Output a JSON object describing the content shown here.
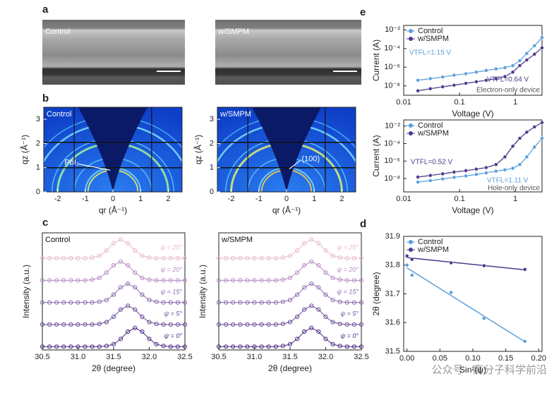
{
  "panel_labels": [
    "a",
    "b",
    "c",
    "d",
    "e"
  ],
  "sem_images": [
    {
      "label": "Control"
    },
    {
      "label": "w/SMPM"
    }
  ],
  "watermark": "公众号 · 高分子科学前沿",
  "chart_data": [
    {
      "type": "giwaxs",
      "title": "Control",
      "xlabel": "qr (Å⁻¹)",
      "ylabel": "qz (Å⁻¹)",
      "xlim": [
        -2.5,
        2.5
      ],
      "xticks": [
        -2,
        -1,
        0,
        1,
        2
      ],
      "ylim": [
        0,
        3.5
      ],
      "yticks": [
        0,
        1,
        2,
        3
      ],
      "annotation": "PbI₂"
    },
    {
      "type": "giwaxs",
      "title": "w/SMPM",
      "xlabel": "qr (Å⁻¹)",
      "ylabel": "qz (Å⁻¹)",
      "xlim": [
        -2.5,
        2.5
      ],
      "xticks": [
        -2,
        -1,
        0,
        1,
        2
      ],
      "ylim": [
        0,
        3.5
      ],
      "yticks": [
        0,
        1,
        2,
        3
      ],
      "annotation": "(100)"
    },
    {
      "type": "xrd",
      "title": "Control",
      "xlabel": "2θ (degree)",
      "ylabel": "Intensity (a.u.)",
      "xlim": [
        30.5,
        32.5
      ],
      "xticks": [
        30.5,
        {
          "value": 31,
          "label": "31.0"
        },
        31.5,
        {
          "value": 32,
          "label": "32.0"
        },
        32.5
      ],
      "x": [
        30.5,
        30.6,
        30.7,
        30.8,
        30.9,
        31,
        31.1,
        31.2,
        31.3,
        31.4,
        31.5,
        31.6,
        31.7,
        31.8,
        31.9,
        32,
        32.1,
        32.2,
        32.3,
        32.4,
        32.5
      ],
      "series": [
        {
          "name": "ψ = 0°",
          "color": "#4b2a7f",
          "values": [
            0.15,
            0.15,
            0.15,
            0.15,
            0.15,
            0.15,
            0.15,
            0.15,
            0.15,
            0.18,
            0.26,
            0.5,
            0.83,
            1,
            0.83,
            0.5,
            0.26,
            0.18,
            0.15,
            0.15,
            0.15
          ]
        },
        {
          "name": "ψ = 5°",
          "color": "#6a4a9a",
          "values": [
            0.15,
            0.15,
            0.15,
            0.15,
            0.15,
            0.15,
            0.15,
            0.15,
            0.18,
            0.26,
            0.5,
            0.83,
            1,
            0.83,
            0.5,
            0.26,
            0.18,
            0.15,
            0.15,
            0.15,
            0.15
          ]
        },
        {
          "name": "ψ = 15°",
          "color": "#8a6aaf",
          "values": [
            0.15,
            0.15,
            0.15,
            0.15,
            0.15,
            0.15,
            0.15,
            0.15,
            0.18,
            0.26,
            0.5,
            0.83,
            1,
            0.83,
            0.5,
            0.26,
            0.18,
            0.15,
            0.15,
            0.15,
            0.15
          ]
        },
        {
          "name": "ψ = 20°",
          "color": "#b48dc0",
          "values": [
            0.15,
            0.15,
            0.15,
            0.15,
            0.15,
            0.15,
            0.15,
            0.18,
            0.26,
            0.5,
            0.83,
            1,
            0.83,
            0.5,
            0.26,
            0.18,
            0.15,
            0.15,
            0.15,
            0.15,
            0.15
          ]
        },
        {
          "name": "ψ = 25°",
          "color": "#e8b8d0",
          "values": [
            0.15,
            0.15,
            0.15,
            0.15,
            0.15,
            0.15,
            0.15,
            0.18,
            0.26,
            0.5,
            0.83,
            1,
            0.83,
            0.5,
            0.26,
            0.18,
            0.15,
            0.15,
            0.15,
            0.15,
            0.15
          ]
        }
      ]
    },
    {
      "type": "xrd",
      "title": "w/SMPM",
      "xlabel": "2θ (degree)",
      "ylabel": "Intensity (a.u.)",
      "xlim": [
        30.5,
        32.5
      ],
      "xticks": [
        30.5,
        {
          "value": 31,
          "label": "31.0"
        },
        31.5,
        {
          "value": 32,
          "label": "32.0"
        },
        32.5
      ],
      "x": [
        30.5,
        30.6,
        30.7,
        30.8,
        30.9,
        31,
        31.1,
        31.2,
        31.3,
        31.4,
        31.5,
        31.6,
        31.7,
        31.8,
        31.9,
        32,
        32.1,
        32.2,
        32.3,
        32.4,
        32.5
      ],
      "series": [
        {
          "name": "ψ = 0°",
          "color": "#4b2a7f",
          "values": [
            0.15,
            0.15,
            0.15,
            0.15,
            0.15,
            0.15,
            0.15,
            0.15,
            0.15,
            0.18,
            0.26,
            0.5,
            0.83,
            1,
            0.83,
            0.5,
            0.26,
            0.18,
            0.15,
            0.15,
            0.15
          ]
        },
        {
          "name": "ψ = 5°",
          "color": "#6a4a9a",
          "values": [
            0.15,
            0.15,
            0.15,
            0.15,
            0.15,
            0.15,
            0.15,
            0.15,
            0.15,
            0.18,
            0.26,
            0.5,
            0.83,
            1,
            0.83,
            0.5,
            0.26,
            0.18,
            0.15,
            0.15,
            0.15
          ]
        },
        {
          "name": "ψ = 15°",
          "color": "#8a6aaf",
          "values": [
            0.15,
            0.15,
            0.15,
            0.15,
            0.15,
            0.15,
            0.15,
            0.15,
            0.15,
            0.18,
            0.26,
            0.5,
            0.83,
            1,
            0.83,
            0.5,
            0.26,
            0.18,
            0.15,
            0.15,
            0.15
          ]
        },
        {
          "name": "ψ = 20°",
          "color": "#b48dc0",
          "values": [
            0.15,
            0.15,
            0.15,
            0.15,
            0.15,
            0.15,
            0.15,
            0.15,
            0.15,
            0.18,
            0.26,
            0.5,
            0.83,
            1,
            0.83,
            0.5,
            0.26,
            0.18,
            0.15,
            0.15,
            0.15
          ]
        },
        {
          "name": "ψ = 25°",
          "color": "#e8b8d0",
          "values": [
            0.15,
            0.15,
            0.15,
            0.15,
            0.15,
            0.15,
            0.15,
            0.15,
            0.15,
            0.18,
            0.26,
            0.5,
            0.83,
            1,
            0.83,
            0.5,
            0.26,
            0.18,
            0.15,
            0.15,
            0.15
          ]
        }
      ]
    },
    {
      "type": "scatter-fit",
      "xlabel": "Sin²(ψ)",
      "ylabel": "2θ (degree)",
      "legend": "upper left",
      "xlim": [
        -0.005,
        0.205
      ],
      "xticks": [
        {
          "value": 0,
          "label": "0.00"
        },
        {
          "value": 0.05,
          "label": "0.05"
        },
        {
          "value": 0.1,
          "label": "0.10"
        },
        {
          "value": 0.15,
          "label": "0.15"
        },
        {
          "value": 0.2,
          "label": "0.20"
        }
      ],
      "ylim": [
        31.5,
        31.9
      ],
      "yticks": [
        31.5,
        31.6,
        31.7,
        31.8,
        31.9
      ],
      "x": [
        0,
        0.0076,
        0.067,
        0.117,
        0.179
      ],
      "series": [
        {
          "name": "Control",
          "color": "#5aa0dc",
          "values": [
            31.8,
            31.765,
            31.705,
            31.615,
            31.535
          ]
        },
        {
          "name": "w/SMPM",
          "color": "#4e3a8a",
          "values": [
            31.832,
            31.82,
            31.808,
            31.798,
            31.785
          ]
        }
      ]
    },
    {
      "type": "line",
      "xlabel": "Voltage (V)",
      "ylabel": "Current (A)",
      "legend": "upper left",
      "log_x": true,
      "log_y": true,
      "xlim": [
        0.01,
        3
      ],
      "xticks": [
        0.01,
        0.1,
        1
      ],
      "ylim": [
        1e-09,
        0.03
      ],
      "yticks": [
        {
          "value": 0.01,
          "label": "10⁻²"
        },
        {
          "value": 0.0001,
          "label": "10⁻⁴"
        },
        {
          "value": 1e-06,
          "label": "10⁻⁶"
        },
        {
          "value": 1e-08,
          "label": "10⁻⁸"
        }
      ],
      "x": [
        0.018,
        0.03,
        0.05,
        0.08,
        0.13,
        0.2,
        0.3,
        0.45,
        0.65,
        0.9,
        1.2,
        1.6,
        2.2,
        3
      ],
      "series": [
        {
          "name": "Control",
          "color": "#5aa0dc",
          "values": [
            4e-08,
            6e-08,
            9e-08,
            1.4e-07,
            2e-07,
            3e-07,
            4.5e-07,
            6.5e-07,
            9e-07,
            1.5e-06,
            5e-06,
            3e-05,
            0.0002,
            0.0015
          ]
        },
        {
          "name": "w/SMPM",
          "color": "#4e3a8a",
          "values": [
            3e-09,
            5e-09,
            8e-09,
            1.2e-08,
            1.9e-08,
            2.8e-08,
            4e-08,
            6e-08,
            1e-07,
            3e-07,
            1.5e-06,
            6e-06,
            2.5e-05,
            0.00012
          ]
        }
      ],
      "annotations": [
        "VTFL=1.15 V",
        "VTFL=0.64 V",
        "Electron-only device"
      ]
    },
    {
      "type": "line",
      "xlabel": "Voltage (V)",
      "ylabel": "Current (A)",
      "legend": "upper left",
      "log_x": true,
      "log_y": true,
      "xlim": [
        0.01,
        3
      ],
      "xticks": [
        0.01,
        0.1,
        1
      ],
      "ylim": [
        3e-10,
        0.05
      ],
      "yticks": [
        {
          "value": 0.01,
          "label": "10⁻²"
        },
        {
          "value": 0.0001,
          "label": "10⁻⁴"
        },
        {
          "value": 1e-06,
          "label": "10⁻⁶"
        },
        {
          "value": 1e-08,
          "label": "10⁻⁸"
        }
      ],
      "x": [
        0.018,
        0.03,
        0.05,
        0.08,
        0.13,
        0.2,
        0.3,
        0.45,
        0.65,
        0.9,
        1.2,
        1.6,
        2.2,
        3
      ],
      "series": [
        {
          "name": "Control",
          "color": "#5aa0dc",
          "values": [
            4e-09,
            6e-09,
            9e-09,
            1.4e-08,
            2e-08,
            3e-08,
            4.5e-08,
            7e-08,
            1e-07,
            1.5e-07,
            4e-07,
            3e-06,
            4e-05,
            0.0004
          ]
        },
        {
          "name": "w/SMPM",
          "color": "#4e3a8a",
          "values": [
            1.5e-08,
            2.3e-08,
            3.5e-08,
            5.5e-08,
            8e-08,
            1.2e-07,
            1.8e-07,
            4e-07,
            3e-06,
            5e-05,
            0.0004,
            0.002,
            0.008,
            0.025
          ]
        }
      ],
      "annotations": [
        "VTFL=0.52 V",
        "VTFL=1.11 V",
        "Hole-only device"
      ]
    }
  ]
}
